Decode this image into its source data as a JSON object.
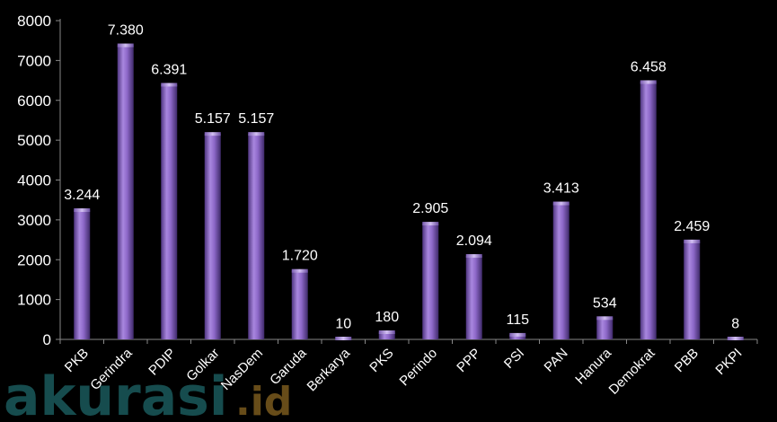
{
  "chart_data": {
    "type": "bar",
    "title": "",
    "xlabel": "",
    "ylabel": "",
    "ylim": [
      0,
      8000
    ],
    "yticks": [
      "0",
      "1000",
      "2000",
      "3000",
      "4000",
      "5000",
      "6000",
      "7000",
      "8000"
    ],
    "categories": [
      "PKB",
      "Gerindra",
      "PDIP",
      "Golkar",
      "NasDem",
      "Garuda",
      "Berkarya",
      "PKS",
      "Perindo",
      "PPP",
      "PSI",
      "PAN",
      "Hanura",
      "Demokrat",
      "PBB",
      "PKPI"
    ],
    "values": [
      3244,
      7380,
      6391,
      5157,
      5157,
      1720,
      10,
      180,
      2905,
      2094,
      115,
      3413,
      534,
      6458,
      2459,
      8
    ],
    "data_labels": [
      "3.244",
      "7.380",
      "6.391",
      "5.157",
      "5.157",
      "1.720",
      "10",
      "180",
      "2.905",
      "2.094",
      "115",
      "3.413",
      "534",
      "6.458",
      "2.459",
      "8"
    ],
    "grid": false,
    "bar_color": "#8b66c4"
  },
  "watermark": {
    "brand": "akurasi",
    "suffix": ".id",
    "brand_color": "#1a5a5c",
    "suffix_color": "#7a5a1e"
  }
}
